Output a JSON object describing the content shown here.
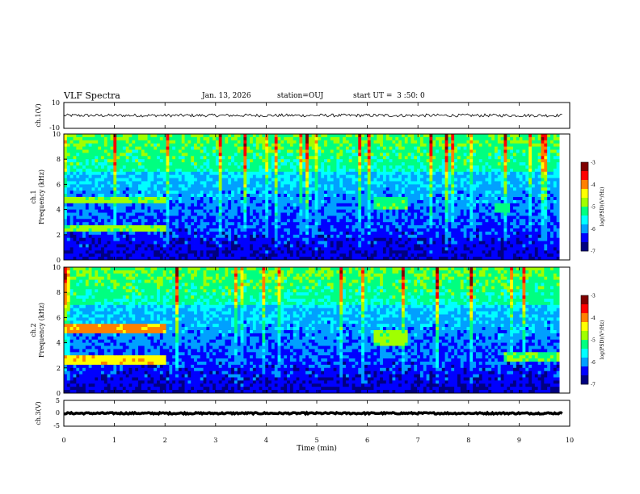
{
  "header": {
    "title": "VLF Spectra",
    "date": "Jan. 13, 2026",
    "station": "station=OUJ",
    "start": "start UT =  3 :50: 0"
  },
  "colors": {
    "colormap": [
      "#000080",
      "#0000ff",
      "#00a0ff",
      "#00ffff",
      "#00ff80",
      "#a0ff00",
      "#ffff00",
      "#ff8000",
      "#ff0000",
      "#800000"
    ]
  },
  "chart_data": [
    {
      "type": "line",
      "panel": "ch1-waveform",
      "ylabel": "ch.1(V)",
      "ylim": [
        -10,
        10
      ],
      "yticks": [
        "10",
        "-10"
      ],
      "baseline": 0,
      "noise_amplitude": 1.2,
      "xlim": [
        0,
        10
      ]
    },
    {
      "type": "heatmap",
      "panel": "ch1-spectrogram",
      "ylabel_top": "ch.1",
      "ylabel": "Frequency (kHz)",
      "ylim": [
        0,
        10
      ],
      "yticks": [
        "0",
        "2",
        "4",
        "6",
        "8",
        "10"
      ],
      "xlim": [
        0,
        9.8
      ],
      "colorbar": {
        "label": "log(PSD)(V²/Hz)",
        "range": [
          -7,
          -3
        ],
        "ticks": [
          "-3",
          "-4",
          "-5",
          "-6",
          "-7"
        ]
      },
      "bands": [
        {
          "t0": 0,
          "t1": 2.0,
          "f0": 4.6,
          "f1": 5.0,
          "level": -4.9
        },
        {
          "t0": 0,
          "t1": 2.0,
          "f0": 2.3,
          "f1": 2.8,
          "level": -4.9
        },
        {
          "t0": 6.1,
          "t1": 6.8,
          "f0": 3.9,
          "f1": 5.0,
          "level": -5.1
        },
        {
          "t0": 8.5,
          "t1": 8.8,
          "f0": 3.8,
          "f1": 4.6,
          "level": -5.2
        }
      ]
    },
    {
      "type": "heatmap",
      "panel": "ch2-spectrogram",
      "ylabel_top": "ch.2",
      "ylabel": "Frequency (kHz)",
      "ylim": [
        0,
        10
      ],
      "yticks": [
        "0",
        "2",
        "4",
        "6",
        "8",
        "10"
      ],
      "xlim": [
        0,
        9.8
      ],
      "colorbar": {
        "label": "log(PSD)(V²/Hz)",
        "range": [
          -7,
          -3
        ],
        "ticks": [
          "-3",
          "-4",
          "-5",
          "-6",
          "-7"
        ]
      },
      "bands": [
        {
          "t0": 0,
          "t1": 2.0,
          "f0": 4.7,
          "f1": 5.5,
          "level": -4.1
        },
        {
          "t0": 0,
          "t1": 2.0,
          "f0": 2.2,
          "f1": 3.0,
          "level": -4.3
        },
        {
          "t0": 6.1,
          "t1": 6.8,
          "f0": 3.8,
          "f1": 5.0,
          "level": -4.9
        },
        {
          "t0": 8.7,
          "t1": 9.8,
          "f0": 2.6,
          "f1": 3.2,
          "level": -5.0
        }
      ]
    },
    {
      "type": "line",
      "panel": "ch3-waveform",
      "ylabel": "ch.3(V)",
      "ylim": [
        -5,
        5
      ],
      "yticks": [
        "5",
        "0",
        "-5"
      ],
      "baseline": 0,
      "noise_amplitude": 0.3,
      "xlim": [
        0,
        10
      ],
      "xlabel": "Time (min)",
      "xticks": [
        "0",
        "1",
        "2",
        "3",
        "4",
        "5",
        "6",
        "7",
        "8",
        "9",
        "10"
      ]
    }
  ]
}
